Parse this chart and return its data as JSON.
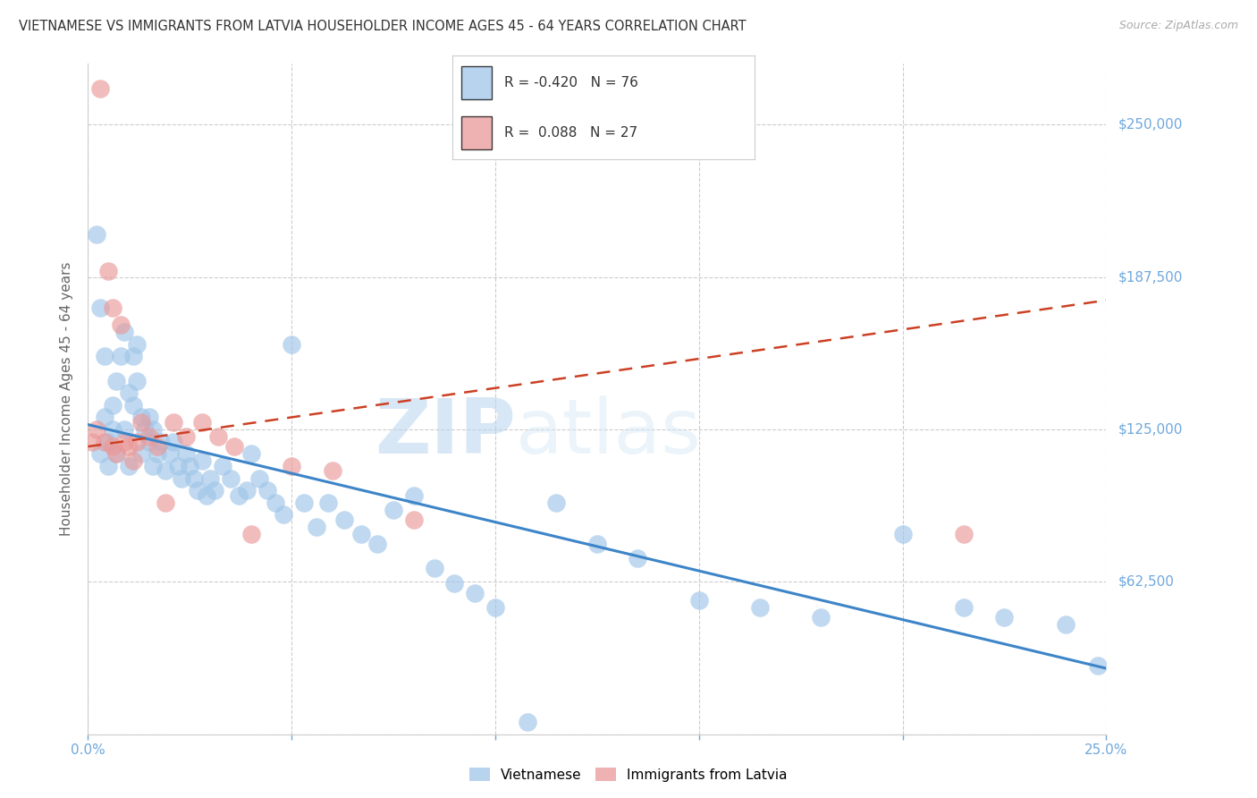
{
  "title": "VIETNAMESE VS IMMIGRANTS FROM LATVIA HOUSEHOLDER INCOME AGES 45 - 64 YEARS CORRELATION CHART",
  "source": "Source: ZipAtlas.com",
  "ylabel": "Householder Income Ages 45 - 64 years",
  "xlim": [
    0.0,
    0.25
  ],
  "ylim": [
    0,
    275000
  ],
  "yticks": [
    0,
    62500,
    125000,
    187500,
    250000
  ],
  "ytick_labels": [
    "",
    "$62,500",
    "$125,000",
    "$187,500",
    "$250,000"
  ],
  "xticks": [
    0.0,
    0.05,
    0.1,
    0.15,
    0.2,
    0.25
  ],
  "xtick_labels": [
    "0.0%",
    "",
    "",
    "",
    "",
    "25.0%"
  ],
  "watermark_zip": "ZIP",
  "watermark_atlas": "atlas",
  "legend_r1": "-0.420",
  "legend_n1": "76",
  "legend_r2": "0.088",
  "legend_n2": "27",
  "blue_color": "#9fc5e8",
  "pink_color": "#ea9999",
  "trend_blue_color": "#3d85c8",
  "trend_pink_color": "#cc4125",
  "axis_tick_color": "#6fa8dc",
  "grid_color": "#cccccc",
  "viet_trend_x0": 0.0,
  "viet_trend_y0": 127000,
  "viet_trend_x1": 0.25,
  "viet_trend_y1": 27000,
  "latv_trend_x0": 0.0,
  "latv_trend_y0": 118000,
  "latv_trend_x1": 0.25,
  "latv_trend_y1": 178000,
  "vietnamese_x": [
    0.002,
    0.003,
    0.003,
    0.004,
    0.004,
    0.005,
    0.005,
    0.006,
    0.006,
    0.007,
    0.007,
    0.008,
    0.009,
    0.009,
    0.01,
    0.01,
    0.011,
    0.011,
    0.012,
    0.012,
    0.013,
    0.013,
    0.014,
    0.015,
    0.015,
    0.016,
    0.016,
    0.017,
    0.018,
    0.019,
    0.02,
    0.021,
    0.022,
    0.023,
    0.024,
    0.025,
    0.026,
    0.027,
    0.028,
    0.029,
    0.03,
    0.031,
    0.033,
    0.035,
    0.037,
    0.039,
    0.04,
    0.042,
    0.044,
    0.046,
    0.048,
    0.05,
    0.053,
    0.056,
    0.059,
    0.063,
    0.067,
    0.071,
    0.075,
    0.08,
    0.085,
    0.09,
    0.095,
    0.1,
    0.108,
    0.115,
    0.125,
    0.135,
    0.15,
    0.165,
    0.18,
    0.2,
    0.215,
    0.225,
    0.24,
    0.248
  ],
  "vietnamese_y": [
    205000,
    175000,
    115000,
    130000,
    155000,
    120000,
    110000,
    125000,
    135000,
    145000,
    115000,
    155000,
    165000,
    125000,
    140000,
    110000,
    135000,
    155000,
    145000,
    160000,
    130000,
    115000,
    125000,
    130000,
    120000,
    110000,
    125000,
    115000,
    120000,
    108000,
    115000,
    120000,
    110000,
    105000,
    115000,
    110000,
    105000,
    100000,
    112000,
    98000,
    105000,
    100000,
    110000,
    105000,
    98000,
    100000,
    115000,
    105000,
    100000,
    95000,
    90000,
    160000,
    95000,
    85000,
    95000,
    88000,
    82000,
    78000,
    92000,
    98000,
    68000,
    62000,
    58000,
    52000,
    5000,
    95000,
    78000,
    72000,
    55000,
    52000,
    48000,
    82000,
    52000,
    48000,
    45000,
    28000
  ],
  "latvia_x": [
    0.001,
    0.002,
    0.003,
    0.004,
    0.005,
    0.006,
    0.006,
    0.007,
    0.008,
    0.009,
    0.01,
    0.011,
    0.012,
    0.013,
    0.015,
    0.017,
    0.019,
    0.021,
    0.024,
    0.028,
    0.032,
    0.036,
    0.04,
    0.05,
    0.06,
    0.08,
    0.215
  ],
  "latvia_y": [
    120000,
    125000,
    265000,
    120000,
    190000,
    175000,
    118000,
    115000,
    168000,
    120000,
    118000,
    112000,
    120000,
    128000,
    122000,
    118000,
    95000,
    128000,
    122000,
    128000,
    122000,
    118000,
    82000,
    110000,
    108000,
    88000,
    82000
  ]
}
